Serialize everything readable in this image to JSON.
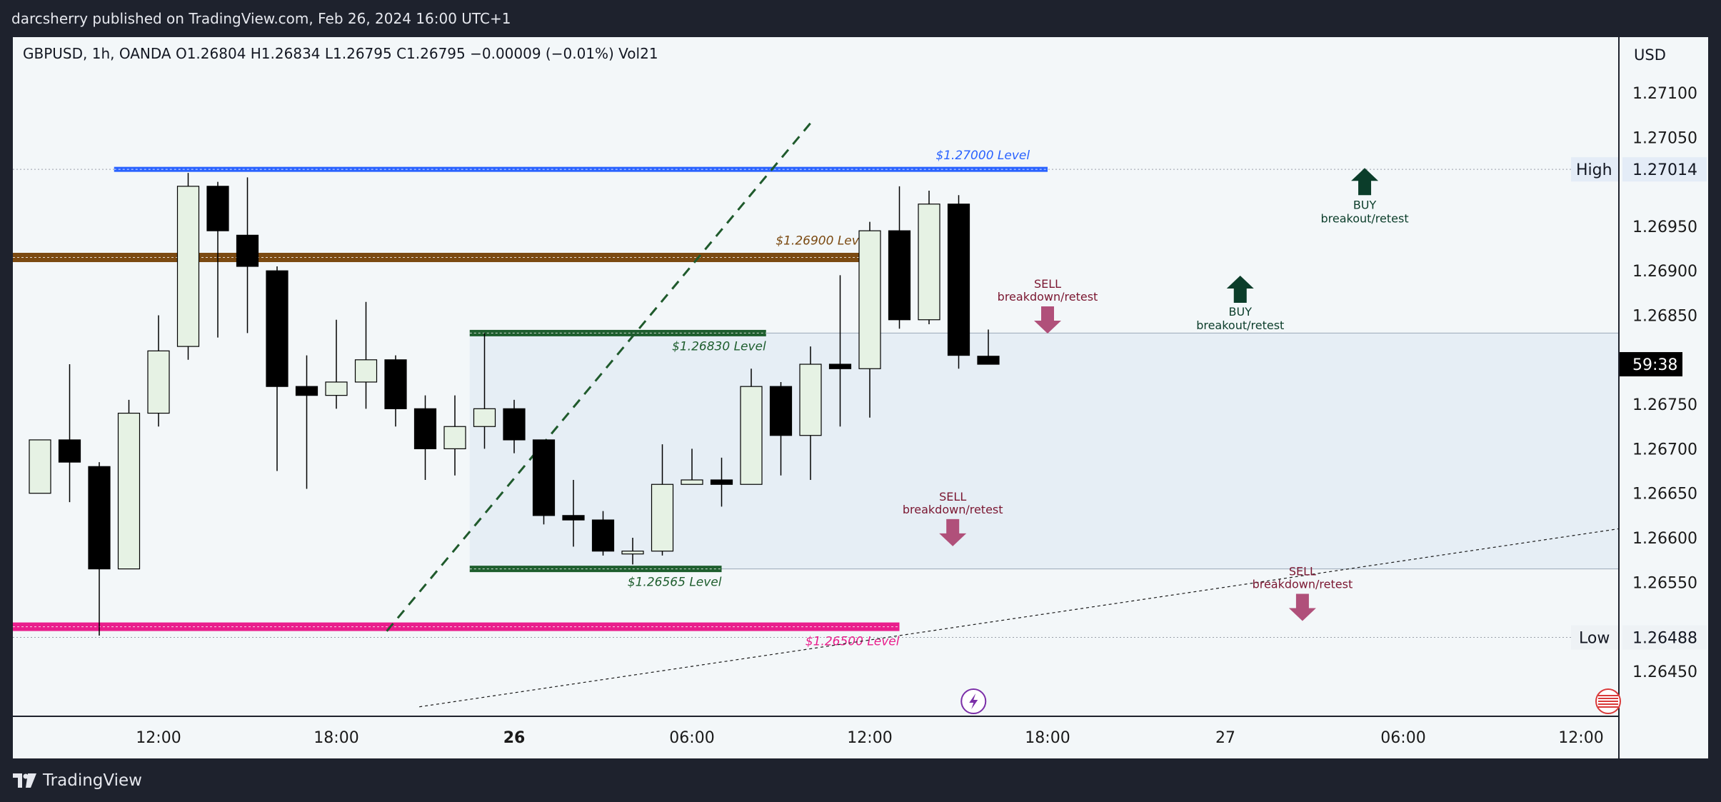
{
  "header": {
    "published_by": "darcsherry published on TradingView.com, Feb 26, 2024 16:00 UTC+1"
  },
  "footer": {
    "brand": "TradingView",
    "logo_icon": "tradingview-logo-icon"
  },
  "chart_data": {
    "type": "candlestick",
    "symbol_line": "GBPUSD, 1h, OANDA  O1.26804  H1.26834  L1.26795  C1.26795  −0.00009 (−0.01%)  Vol21",
    "currency": "USD",
    "ylim": [
      1.2641,
      1.2719
    ],
    "y_ticks": [
      {
        "value": 1.271,
        "label": "1.27100"
      },
      {
        "value": 1.2705,
        "label": "1.27050"
      },
      {
        "value": 1.2695,
        "label": "1.26950"
      },
      {
        "value": 1.269,
        "label": "1.26900"
      },
      {
        "value": 1.2685,
        "label": "1.26850"
      },
      {
        "value": 1.2675,
        "label": "1.26750"
      },
      {
        "value": 1.267,
        "label": "1.26700"
      },
      {
        "value": 1.2665,
        "label": "1.26650"
      },
      {
        "value": 1.266,
        "label": "1.26600"
      },
      {
        "value": 1.2655,
        "label": "1.26550"
      },
      {
        "value": 1.2645,
        "label": "1.26450"
      }
    ],
    "x_ticks": [
      {
        "bar": 4,
        "label": "12:00",
        "bold": false
      },
      {
        "bar": 10,
        "label": "18:00",
        "bold": false
      },
      {
        "bar": 16,
        "label": "26",
        "bold": true
      },
      {
        "bar": 22,
        "label": "06:00",
        "bold": false
      },
      {
        "bar": 28,
        "label": "12:00",
        "bold": false
      },
      {
        "bar": 34,
        "label": "18:00",
        "bold": false
      },
      {
        "bar": 40,
        "label": "27",
        "bold": false
      },
      {
        "bar": 46,
        "label": "06:00",
        "bold": false
      },
      {
        "bar": 52,
        "label": "12:00",
        "bold": false
      }
    ],
    "candles": [
      {
        "bar": 0,
        "o": 1.2665,
        "h": 1.2671,
        "l": 1.2665,
        "c": 1.2671
      },
      {
        "bar": 1,
        "o": 1.2671,
        "h": 1.26795,
        "l": 1.2664,
        "c": 1.26685
      },
      {
        "bar": 2,
        "o": 1.2668,
        "h": 1.26685,
        "l": 1.2649,
        "c": 1.26565
      },
      {
        "bar": 3,
        "o": 1.26565,
        "h": 1.26755,
        "l": 1.26565,
        "c": 1.2674
      },
      {
        "bar": 4,
        "o": 1.2674,
        "h": 1.2685,
        "l": 1.26725,
        "c": 1.2681
      },
      {
        "bar": 5,
        "o": 1.26815,
        "h": 1.2701,
        "l": 1.268,
        "c": 1.26995
      },
      {
        "bar": 6,
        "o": 1.26995,
        "h": 1.27,
        "l": 1.26825,
        "c": 1.26945
      },
      {
        "bar": 7,
        "o": 1.2694,
        "h": 1.27005,
        "l": 1.2683,
        "c": 1.26905
      },
      {
        "bar": 8,
        "o": 1.269,
        "h": 1.26905,
        "l": 1.26675,
        "c": 1.2677
      },
      {
        "bar": 9,
        "o": 1.2677,
        "h": 1.26805,
        "l": 1.26655,
        "c": 1.2676
      },
      {
        "bar": 10,
        "o": 1.2676,
        "h": 1.26845,
        "l": 1.26745,
        "c": 1.26775
      },
      {
        "bar": 11,
        "o": 1.26775,
        "h": 1.26865,
        "l": 1.26745,
        "c": 1.268
      },
      {
        "bar": 12,
        "o": 1.268,
        "h": 1.26805,
        "l": 1.26725,
        "c": 1.26745
      },
      {
        "bar": 13,
        "o": 1.26745,
        "h": 1.2676,
        "l": 1.26665,
        "c": 1.267
      },
      {
        "bar": 14,
        "o": 1.267,
        "h": 1.2676,
        "l": 1.2667,
        "c": 1.26725
      },
      {
        "bar": 15,
        "o": 1.26725,
        "h": 1.2683,
        "l": 1.267,
        "c": 1.26745
      },
      {
        "bar": 16,
        "o": 1.26745,
        "h": 1.26755,
        "l": 1.26695,
        "c": 1.2671
      },
      {
        "bar": 17,
        "o": 1.2671,
        "h": 1.2671,
        "l": 1.26615,
        "c": 1.26625
      },
      {
        "bar": 18,
        "o": 1.26625,
        "h": 1.26665,
        "l": 1.2659,
        "c": 1.2662
      },
      {
        "bar": 19,
        "o": 1.2662,
        "h": 1.2663,
        "l": 1.2658,
        "c": 1.26585
      },
      {
        "bar": 20,
        "o": 1.26585,
        "h": 1.266,
        "l": 1.2657,
        "c": 1.26585
      },
      {
        "bar": 21,
        "o": 1.26585,
        "h": 1.26705,
        "l": 1.2658,
        "c": 1.2666
      },
      {
        "bar": 22,
        "o": 1.2666,
        "h": 1.267,
        "l": 1.2666,
        "c": 1.26665
      },
      {
        "bar": 23,
        "o": 1.26665,
        "h": 1.2669,
        "l": 1.26635,
        "c": 1.2666
      },
      {
        "bar": 24,
        "o": 1.2666,
        "h": 1.2679,
        "l": 1.2666,
        "c": 1.2677
      },
      {
        "bar": 25,
        "o": 1.2677,
        "h": 1.26775,
        "l": 1.2667,
        "c": 1.26715
      },
      {
        "bar": 26,
        "o": 1.26715,
        "h": 1.26815,
        "l": 1.26665,
        "c": 1.26795
      },
      {
        "bar": 27,
        "o": 1.26795,
        "h": 1.26895,
        "l": 1.26725,
        "c": 1.2679
      },
      {
        "bar": 28,
        "o": 1.2679,
        "h": 1.26955,
        "l": 1.26735,
        "c": 1.26945
      },
      {
        "bar": 29,
        "o": 1.26945,
        "h": 1.26995,
        "l": 1.26835,
        "c": 1.26845
      },
      {
        "bar": 30,
        "o": 1.26845,
        "h": 1.2699,
        "l": 1.2684,
        "c": 1.26975
      },
      {
        "bar": 31,
        "o": 1.26975,
        "h": 1.26985,
        "l": 1.2679,
        "c": 1.26805
      },
      {
        "bar": 32,
        "o": 1.26804,
        "h": 1.26834,
        "l": 1.26795,
        "c": 1.26795
      }
    ],
    "levels": [
      {
        "name": "$1.27000 Level",
        "price": 1.27014,
        "color": "#2962ff"
      },
      {
        "name": "$1.26900 Level",
        "price": 1.26915,
        "color": "#7b4a12"
      },
      {
        "name": "$1.26830 Level",
        "price": 1.2683,
        "color": "#1e5e2e"
      },
      {
        "name": "$1.26565 Level",
        "price": 1.26565,
        "color": "#1e5e2e"
      },
      {
        "name": "$1.26500 Level",
        "price": 1.265,
        "color": "#e91e8c"
      }
    ],
    "annotations": {
      "buy_top": {
        "label1": "BUY",
        "label2": "breakout/retest"
      },
      "buy_mid": {
        "label1": "BUY",
        "label2": "breakout/retest"
      },
      "sell_upper": {
        "label1": "SELL",
        "label2": "breakdown/retest"
      },
      "sell_mid": {
        "label1": "SELL",
        "label2": "breakdown/retest"
      },
      "sell_low": {
        "label1": "SELL",
        "label2": "breakdown/retest"
      }
    },
    "high": {
      "label": "High",
      "value": "1.27014"
    },
    "low": {
      "label": "Low",
      "value": "1.26488"
    },
    "countdown": "59:38",
    "colors": {
      "up_fill": "#e6f2e4",
      "down_fill": "#000000",
      "candle_border": "#000000",
      "buy_arrow": "#0b3d2a",
      "sell_arrow": "#b0507a",
      "sell_text": "#7a1630",
      "axis_text": "#1a1a1a",
      "pane_bg": "#f3f7f9",
      "range_fill": "#dbe8f3"
    },
    "flash_icon": "lightning-icon",
    "flag_icon": "us-flag-icon"
  }
}
